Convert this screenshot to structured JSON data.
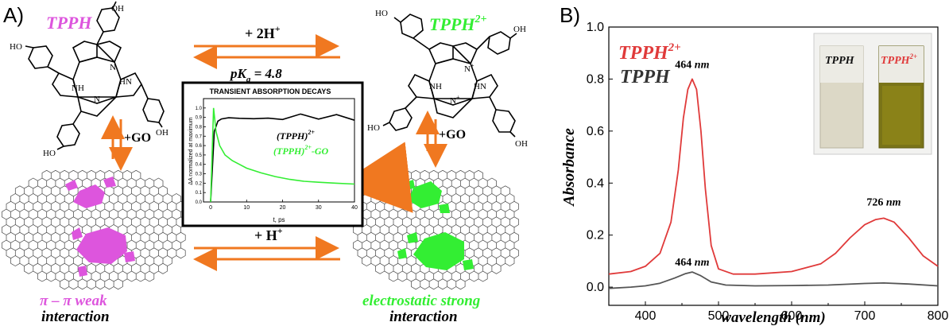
{
  "panel_a": {
    "label": "A)",
    "tpph_title": "TPPH",
    "tpph2_title": "TPPH",
    "tpph2_sup": "2+",
    "reaction_top": "+ 2H",
    "reaction_top_sup": "+",
    "pka_prefix": "pK",
    "pka_sub": "a",
    "pka_suffix": " = 4.8",
    "reaction_bottom": "+ H",
    "reaction_bottom_sup": "+",
    "go_left": "+GO",
    "go_right": "+GO",
    "weak_line1": "π – π weak",
    "weak_line2": "interaction",
    "strong_line1": "electrostatic strong",
    "strong_line2": "interaction",
    "oh": "OH",
    "ho": "HO",
    "nh": "NH",
    "hn": "HN",
    "n": "N",
    "nh_plus": "N",
    "colors": {
      "magenta": "#dd55dd",
      "green": "#33ee33",
      "orange": "#f07820",
      "graphene": "#333333"
    },
    "inset": {
      "title": "TRANSIENT ABSORPTION DECAYS",
      "ylabel": "ΔA normalized at maximum",
      "xlabel": "t, ps",
      "series1_label": "(TPPH)",
      "series1_sup": "2+",
      "series2_label": "(TPPH)",
      "series2_sup": "2+",
      "series2_suffix": "-GO"
    }
  },
  "panel_b": {
    "label": "B)",
    "legend_red": "TPPH",
    "legend_red_sup": "2+",
    "legend_black": "TPPH",
    "photo_left": "TPPH",
    "photo_right": "TPPH",
    "photo_right_sup": "2+",
    "colors": {
      "red": "#e03a3a",
      "gray": "#555555"
    }
  },
  "chart_data": [
    {
      "type": "line",
      "title": "TRANSIENT ABSORPTION DECAYS",
      "xlabel": "t, ps",
      "ylabel": "ΔA normalized at maximum",
      "xlim": [
        -2,
        40
      ],
      "ylim": [
        0,
        1.1
      ],
      "xticks": [
        0,
        10,
        20,
        30,
        40
      ],
      "yticks": [
        0.0,
        0.1,
        0.2,
        0.3,
        0.4,
        0.5,
        0.6,
        0.7,
        0.8,
        0.9,
        1.0
      ],
      "series": [
        {
          "name": "(TPPH)2+",
          "color": "#000000",
          "x": [
            0,
            1,
            2,
            3,
            5,
            8,
            12,
            16,
            20,
            25,
            30,
            35,
            40
          ],
          "y": [
            0.0,
            0.75,
            0.86,
            0.88,
            0.89,
            0.9,
            0.9,
            0.91,
            0.9,
            0.91,
            0.91,
            0.9,
            0.9
          ]
        },
        {
          "name": "(TPPH)2+-GO",
          "color": "#33ee33",
          "x": [
            0,
            0.8,
            1.5,
            2.5,
            4,
            6,
            8,
            10,
            14,
            18,
            22,
            26,
            30,
            35,
            40
          ],
          "y": [
            0.0,
            1.0,
            0.75,
            0.6,
            0.5,
            0.44,
            0.4,
            0.36,
            0.31,
            0.27,
            0.24,
            0.22,
            0.21,
            0.2,
            0.19
          ]
        }
      ]
    },
    {
      "type": "line",
      "xlabel": "wavelength (nm)",
      "ylabel": "Absorbance",
      "xlim": [
        350,
        800
      ],
      "ylim": [
        -0.07,
        1.0
      ],
      "xticks": [
        400,
        500,
        600,
        700,
        800
      ],
      "yticks": [
        0.0,
        0.2,
        0.4,
        0.6,
        0.8,
        1.0
      ],
      "series": [
        {
          "name": "TPPH2+",
          "color": "#e03a3a",
          "x": [
            350,
            380,
            400,
            420,
            435,
            445,
            452,
            458,
            464,
            470,
            476,
            482,
            490,
            500,
            520,
            550,
            600,
            640,
            660,
            680,
            700,
            715,
            726,
            740,
            760,
            780,
            800
          ],
          "y": [
            0.05,
            0.06,
            0.08,
            0.13,
            0.25,
            0.45,
            0.65,
            0.76,
            0.8,
            0.76,
            0.6,
            0.38,
            0.16,
            0.07,
            0.05,
            0.05,
            0.06,
            0.09,
            0.13,
            0.19,
            0.24,
            0.26,
            0.265,
            0.25,
            0.19,
            0.12,
            0.08
          ]
        },
        {
          "name": "TPPH",
          "color": "#555555",
          "x": [
            350,
            380,
            400,
            420,
            440,
            455,
            464,
            475,
            490,
            510,
            550,
            600,
            650,
            700,
            726,
            760,
            800
          ],
          "y": [
            -0.005,
            0.0,
            0.005,
            0.015,
            0.035,
            0.052,
            0.058,
            0.045,
            0.02,
            0.008,
            0.005,
            0.006,
            0.008,
            0.014,
            0.016,
            0.012,
            0.005
          ]
        }
      ],
      "annotations": [
        {
          "text": "464 nm",
          "x": 464,
          "y": 0.8
        },
        {
          "text": "726 nm",
          "x": 726,
          "y": 0.265
        },
        {
          "text": "464 nm",
          "x": 464,
          "y": 0.058
        }
      ]
    }
  ]
}
